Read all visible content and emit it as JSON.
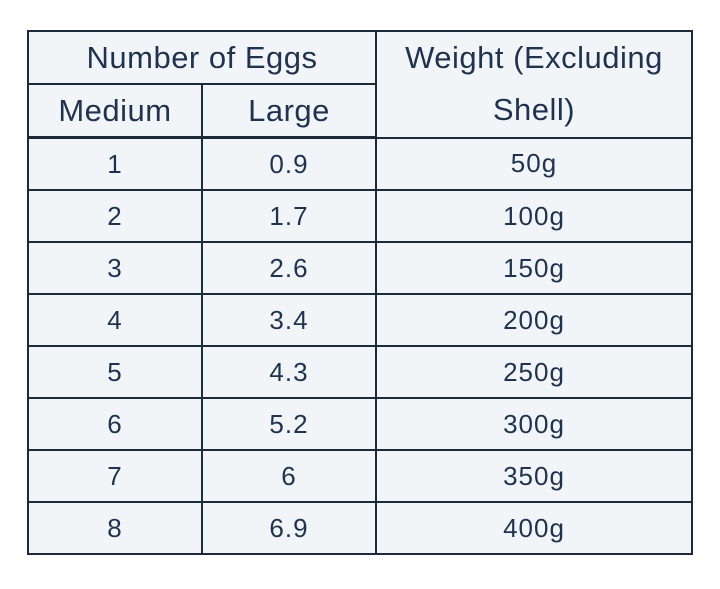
{
  "table": {
    "header": {
      "group": "Number of Eggs",
      "columns": [
        "Medium",
        "Large"
      ],
      "weight": "Weight (Excluding Shell)"
    },
    "rows": [
      [
        "1",
        "0.9",
        "50g"
      ],
      [
        "2",
        "1.7",
        "100g"
      ],
      [
        "3",
        "2.6",
        "150g"
      ],
      [
        "4",
        "3.4",
        "200g"
      ],
      [
        "5",
        "4.3",
        "250g"
      ],
      [
        "6",
        "5.2",
        "300g"
      ],
      [
        "7",
        "6",
        "350g"
      ],
      [
        "8",
        "6.9",
        "400g"
      ]
    ]
  }
}
